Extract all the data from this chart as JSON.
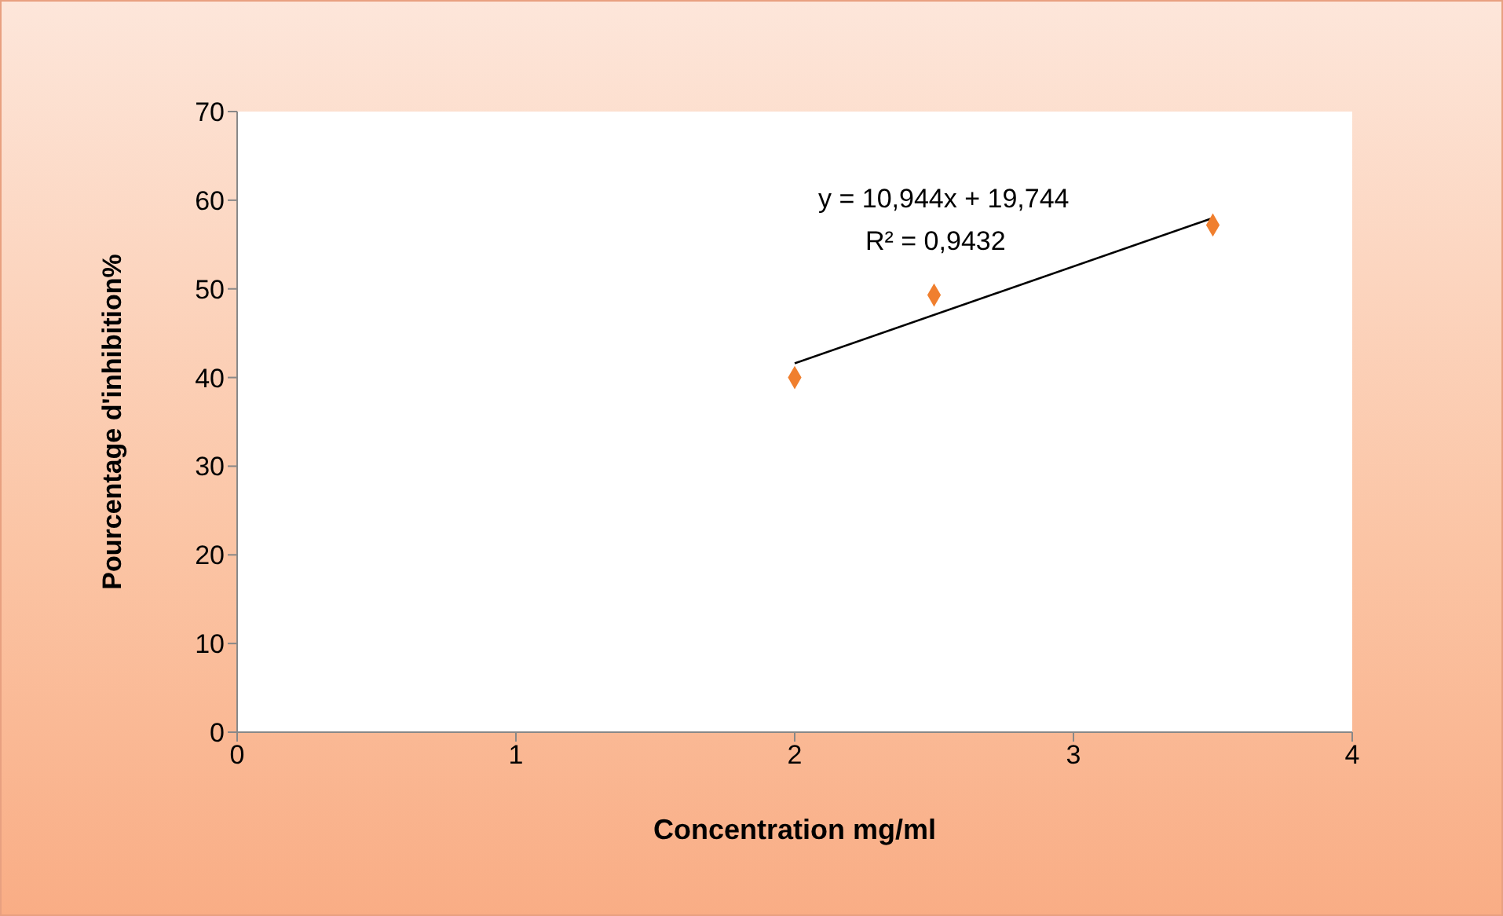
{
  "chart_data": {
    "type": "scatter",
    "xlabel": "Concentration mg/ml",
    "ylabel": "Pourcentage d'inhibition%",
    "xlim": [
      0,
      4
    ],
    "xticks": [
      0,
      1,
      2,
      3,
      4
    ],
    "ylim": [
      0,
      70
    ],
    "yticks": [
      0,
      10,
      20,
      30,
      40,
      50,
      60,
      70
    ],
    "series": [
      {
        "color": "#f07f2e",
        "marker": "diamond",
        "x": [
          2,
          2.5,
          3.5
        ],
        "values": [
          40,
          49.3,
          57.2
        ]
      },
      {
        "type": "line",
        "color": "#000000",
        "marker": "none",
        "line_style": "solid",
        "x": [
          2,
          3.5
        ],
        "values": [
          41.6,
          58.0
        ]
      }
    ],
    "annotations": [
      "y = 10,944x + 19,744",
      "R² = 0,9432"
    ]
  }
}
